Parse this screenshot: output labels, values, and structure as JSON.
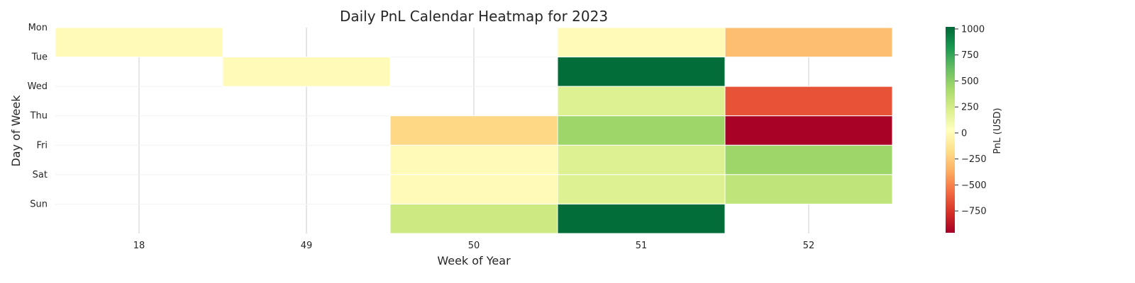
{
  "chart_data": {
    "type": "heatmap",
    "title": "Daily PnL Calendar Heatmap for 2023",
    "xlabel": "Week of Year",
    "ylabel": "Day of Week",
    "x_categories": [
      "18",
      "49",
      "50",
      "51",
      "52"
    ],
    "y_categories": [
      "Mon",
      "Tue",
      "Wed",
      "Thu",
      "Fri",
      "Sat",
      "Sun"
    ],
    "values": [
      [
        0,
        null,
        null,
        0,
        -300
      ],
      [
        null,
        0,
        null,
        1000,
        null
      ],
      [
        null,
        null,
        null,
        200,
        -650
      ],
      [
        null,
        null,
        -200,
        450,
        -950
      ],
      [
        null,
        null,
        0,
        200,
        450
      ],
      [
        null,
        null,
        0,
        200,
        330
      ],
      [
        null,
        null,
        280,
        1000,
        null
      ]
    ],
    "colorbar": {
      "label": "PnL (USD)",
      "ticks": [
        1000,
        750,
        500,
        250,
        0,
        -250,
        -500,
        -750
      ],
      "tick_labels": [
        "1000",
        "750",
        "500",
        "250",
        "0",
        "−250",
        "−500",
        "−750"
      ],
      "vmin": -960,
      "vmax": 1020,
      "colormap": "RdYlGn"
    },
    "grid": true
  }
}
